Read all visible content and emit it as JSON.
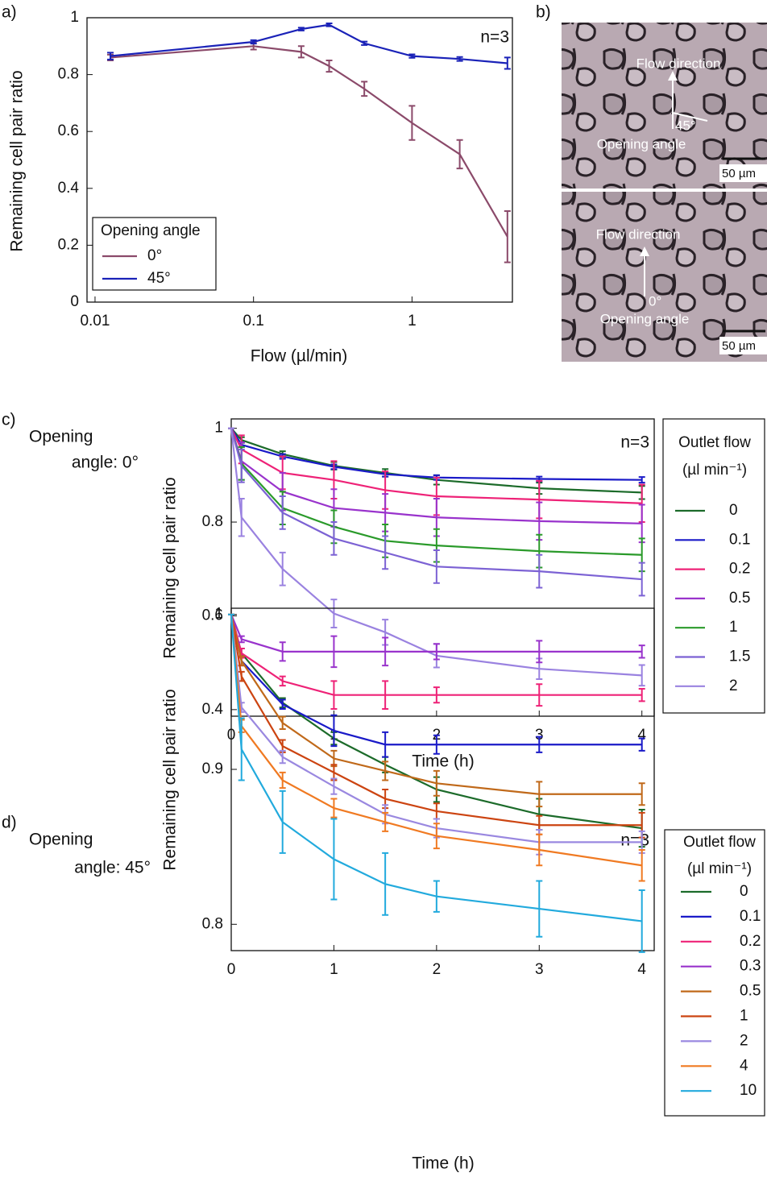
{
  "chart_data": [
    {
      "type": "line",
      "panel_label": "a)",
      "annotation": "n=3",
      "x_label": "Flow (µl/min)",
      "y_label": "Remaining cell pair ratio",
      "legend_title": "Opening angle",
      "legend": "lower left",
      "log_x": true,
      "xlim": [
        0.0089,
        4.3
      ],
      "xticks": [
        0.01,
        0.1,
        1
      ],
      "ylim": [
        0,
        1.0
      ],
      "yticks": [
        0,
        0.2,
        0.4,
        0.6,
        0.8,
        1
      ],
      "x": [
        0.0125,
        0.1,
        0.2,
        0.3,
        0.5,
        1,
        2,
        4
      ],
      "series": [
        {
          "name": "0°",
          "color": "#8b4a6a",
          "values": [
            0.86,
            0.9,
            0.88,
            0.83,
            0.75,
            0.63,
            0.52,
            0.23
          ],
          "errors": [
            0.01,
            0.012,
            0.02,
            0.02,
            0.025,
            0.06,
            0.05,
            0.09
          ]
        },
        {
          "name": "45°",
          "color": "#1a22b8",
          "values": [
            0.865,
            0.915,
            0.96,
            0.975,
            0.91,
            0.865,
            0.855,
            0.84
          ],
          "errors": [
            0.012,
            0.006,
            0.005,
            0.005,
            0.006,
            0.006,
            0.007,
            0.02
          ]
        }
      ]
    },
    {
      "type": "line",
      "panel_label": "c)",
      "side_label": [
        "Opening",
        "angle: 0°"
      ],
      "annotation": "n=3",
      "x_label": "Time (h)",
      "y_label": "Remaining cell pair ratio",
      "legend_title": "Outlet flow",
      "legend_subtitle": "(µl min⁻¹)",
      "legend": "right outside",
      "log_x": false,
      "xlim": [
        0,
        4.12
      ],
      "xticks": [
        0,
        1,
        2,
        3,
        4
      ],
      "ylim": [
        0.386,
        1.02
      ],
      "yticks": [
        0.4,
        0.6,
        0.8,
        1
      ],
      "x": [
        0,
        0.1,
        0.5,
        1,
        1.5,
        2,
        3,
        4
      ],
      "series": [
        {
          "name": "0",
          "color": "#1c6b2a",
          "values": [
            1,
            0.975,
            0.945,
            0.92,
            0.905,
            0.89,
            0.872,
            0.863
          ],
          "errors": [
            0,
            0.006,
            0.006,
            0.008,
            0.008,
            0.01,
            0.012,
            0.014
          ]
        },
        {
          "name": "0.1",
          "color": "#1a1ac8",
          "values": [
            1,
            0.965,
            0.94,
            0.918,
            0.902,
            0.895,
            0.892,
            0.89
          ],
          "errors": [
            0,
            0.005,
            0.005,
            0.005,
            0.005,
            0.005,
            0.005,
            0.006
          ]
        },
        {
          "name": "0.2",
          "color": "#ee2277",
          "values": [
            1,
            0.955,
            0.905,
            0.89,
            0.868,
            0.855,
            0.848,
            0.84
          ],
          "errors": [
            0,
            0.03,
            0.035,
            0.04,
            0.04,
            0.04,
            0.04,
            0.04
          ]
        },
        {
          "name": "0.5",
          "color": "#9933cc",
          "values": [
            1,
            0.93,
            0.865,
            0.83,
            0.82,
            0.81,
            0.802,
            0.797
          ],
          "errors": [
            0,
            0.04,
            0.04,
            0.04,
            0.04,
            0.04,
            0.04,
            0.04
          ]
        },
        {
          "name": "1",
          "color": "#2a9a2a",
          "values": [
            1,
            0.925,
            0.83,
            0.79,
            0.76,
            0.75,
            0.738,
            0.73
          ],
          "errors": [
            0,
            0.035,
            0.035,
            0.035,
            0.035,
            0.035,
            0.035,
            0.035
          ]
        },
        {
          "name": "1.5",
          "color": "#7c62d4",
          "values": [
            1,
            0.92,
            0.82,
            0.765,
            0.735,
            0.705,
            0.695,
            0.678
          ],
          "errors": [
            0,
            0.035,
            0.035,
            0.035,
            0.035,
            0.035,
            0.035,
            0.035
          ]
        },
        {
          "name": "2",
          "color": "#9a82e0",
          "values": [
            1,
            0.81,
            0.7,
            0.605,
            0.565,
            0.515,
            0.487,
            0.473
          ],
          "errors": [
            0,
            0.04,
            0.035,
            0.03,
            0.027,
            0.025,
            0.022,
            0.022
          ]
        }
      ]
    },
    {
      "type": "line",
      "panel_label": "d)",
      "side_label": [
        "Opening",
        "angle: 45°"
      ],
      "annotation": "n=3",
      "x_label": "Time (h)",
      "y_label": "Remaining cell pair ratio",
      "legend_title": "Outlet flow",
      "legend_subtitle": "(µl min⁻¹)",
      "legend": "right outside",
      "log_x": false,
      "xlim": [
        0,
        4.12
      ],
      "xticks": [
        0,
        1,
        2,
        3,
        4
      ],
      "ylim": [
        0.783,
        1.004
      ],
      "yticks": [
        0.8,
        0.9,
        1
      ],
      "x": [
        0,
        0.1,
        0.5,
        1,
        1.5,
        2,
        3,
        4
      ],
      "series": [
        {
          "name": "0",
          "color": "#1c6b2a",
          "values": [
            1,
            0.975,
            0.943,
            0.92,
            0.903,
            0.887,
            0.871,
            0.862
          ],
          "errors": [
            0,
            0.003,
            0.003,
            0.004,
            0.005,
            0.008,
            0.01,
            0.012
          ]
        },
        {
          "name": "0.1",
          "color": "#1a1ac8",
          "values": [
            1,
            0.97,
            0.942,
            0.925,
            0.916,
            0.916,
            0.916,
            0.916
          ],
          "errors": [
            0,
            0.003,
            0.003,
            0.01,
            0.008,
            0.006,
            0.005,
            0.004
          ]
        },
        {
          "name": "0.2",
          "color": "#ee2277",
          "values": [
            1,
            0.975,
            0.957,
            0.948,
            0.948,
            0.948,
            0.948,
            0.948
          ],
          "errors": [
            0,
            0.003,
            0.003,
            0.009,
            0.009,
            0.005,
            0.007,
            0.004
          ]
        },
        {
          "name": "0.3",
          "color": "#9933cc",
          "values": [
            1,
            0.984,
            0.976,
            0.976,
            0.976,
            0.976,
            0.976,
            0.976
          ],
          "errors": [
            0,
            0.002,
            0.006,
            0.01,
            0.009,
            0.005,
            0.007,
            0.004
          ]
        },
        {
          "name": "0.5",
          "color": "#c0691a",
          "values": [
            1,
            0.97,
            0.93,
            0.907,
            0.899,
            0.891,
            0.884,
            0.884
          ],
          "errors": [
            0,
            0.003,
            0.004,
            0.005,
            0.006,
            0.008,
            0.008,
            0.007
          ]
        },
        {
          "name": "1",
          "color": "#cc4411",
          "values": [
            1,
            0.96,
            0.915,
            0.898,
            0.881,
            0.873,
            0.864,
            0.864
          ],
          "errors": [
            0,
            0.003,
            0.004,
            0.005,
            0.006,
            0.005,
            0.006,
            0.008
          ]
        },
        {
          "name": "2",
          "color": "#9a88e0",
          "values": [
            1,
            0.94,
            0.908,
            0.889,
            0.871,
            0.862,
            0.853,
            0.853
          ],
          "errors": [
            0,
            0.003,
            0.004,
            0.005,
            0.006,
            0.006,
            0.008,
            0.007
          ]
        },
        {
          "name": "4",
          "color": "#f07a22",
          "values": [
            1,
            0.928,
            0.893,
            0.875,
            0.866,
            0.857,
            0.848,
            0.838
          ],
          "errors": [
            0,
            0.004,
            0.005,
            0.006,
            0.006,
            0.008,
            0.01,
            0.01
          ]
        },
        {
          "name": "10",
          "color": "#22aadd",
          "values": [
            1,
            0.913,
            0.866,
            0.842,
            0.826,
            0.818,
            0.81,
            0.802
          ],
          "errors": [
            0,
            0.02,
            0.02,
            0.026,
            0.02,
            0.01,
            0.018,
            0.02
          ]
        }
      ]
    }
  ],
  "panel_b": {
    "label": "b)",
    "top": {
      "flow_label": "Flow direction",
      "angle": "45°",
      "angle_label": "Opening angle",
      "scale": "50 µm"
    },
    "bottom": {
      "flow_label": "Flow direction",
      "angle": "0°",
      "angle_label": "Opening angle",
      "scale": "50 µm"
    }
  }
}
